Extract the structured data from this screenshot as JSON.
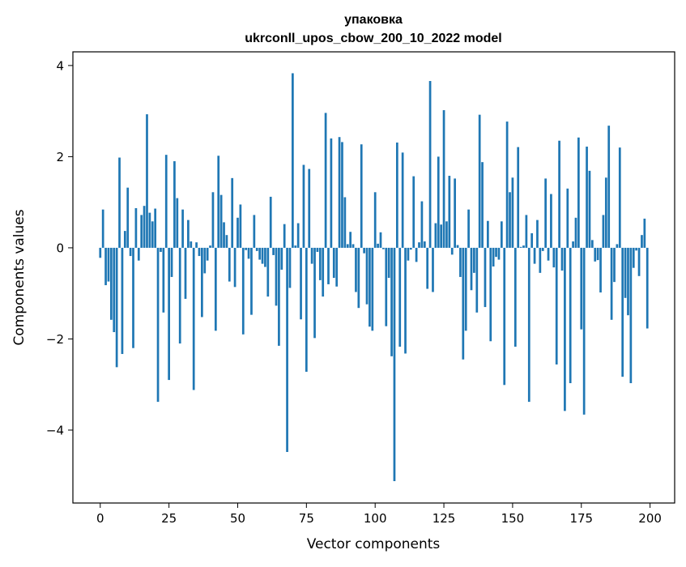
{
  "chart_data": {
    "type": "bar",
    "title": "упаковка",
    "subtitle": "ukrconll_upos_cbow_200_10_2022 model",
    "xlabel": "Vector components",
    "ylabel": "Components values",
    "xlim": [
      -9.95,
      208.95
    ],
    "ylim": [
      -5.6,
      4.3
    ],
    "x_ticks": [
      0,
      25,
      50,
      75,
      100,
      125,
      150,
      175,
      200
    ],
    "y_ticks": [
      -4,
      -2,
      0,
      2,
      4
    ],
    "y_tick_labels": [
      "−4",
      "−2",
      "0",
      "2",
      "4"
    ],
    "grid": false,
    "legend": "none",
    "bar_color": "#1f77b4",
    "series": [
      {
        "values": [
          -0.22,
          0.84,
          -0.82,
          -0.74,
          -1.58,
          -1.85,
          -2.62,
          1.98,
          -2.33,
          0.37,
          1.32,
          -0.18,
          -2.2,
          0.87,
          -0.28,
          0.72,
          0.92,
          2.93,
          0.77,
          0.58,
          0.86,
          -3.38,
          -0.09,
          -1.42,
          2.04,
          -2.9,
          -0.64,
          1.9,
          1.09,
          -2.1,
          0.84,
          -1.12,
          0.61,
          0.14,
          -3.12,
          0.12,
          -0.18,
          -1.52,
          -0.56,
          -0.28,
          0.05,
          1.22,
          -1.82,
          2.02,
          1.16,
          0.56,
          0.28,
          -0.74,
          1.53,
          -0.86,
          0.66,
          0.95,
          -1.9,
          -0.05,
          -0.24,
          -1.47,
          0.72,
          -0.07,
          -0.26,
          -0.35,
          -0.42,
          -1.07,
          1.12,
          -0.16,
          -1.27,
          -2.15,
          -0.48,
          0.52,
          -4.48,
          -0.88,
          3.83,
          0.05,
          0.54,
          -1.57,
          1.82,
          -2.72,
          1.73,
          -0.35,
          -1.98,
          -0.09,
          -0.71,
          -1.07,
          2.96,
          -0.8,
          2.4,
          -0.66,
          -0.85,
          2.43,
          2.32,
          1.11,
          0.08,
          0.35,
          0.08,
          -0.97,
          -1.32,
          2.27,
          -0.12,
          -1.24,
          -1.73,
          -1.82,
          1.22,
          0.09,
          0.34,
          -0.03,
          -1.72,
          -0.66,
          -2.38,
          -5.12,
          2.31,
          -2.17,
          2.09,
          -2.32,
          -0.28,
          -0.04,
          1.57,
          -0.31,
          0.12,
          1.02,
          0.14,
          -0.9,
          3.66,
          -0.97,
          0.54,
          2.0,
          0.51,
          3.02,
          0.58,
          1.58,
          -0.15,
          1.52,
          0.06,
          -0.64,
          -2.45,
          -1.82,
          0.84,
          -0.93,
          -0.55,
          -1.42,
          2.92,
          1.88,
          -1.3,
          0.59,
          -2.05,
          -0.41,
          -0.2,
          -0.26,
          0.58,
          -3.01,
          2.77,
          1.22,
          1.54,
          -2.17,
          2.21,
          0.02,
          0.05,
          0.72,
          -3.38,
          0.32,
          -0.35,
          0.61,
          -0.55,
          -0.07,
          1.52,
          -0.28,
          1.18,
          -0.43,
          -2.56,
          2.35,
          -0.5,
          -3.58,
          1.3,
          -2.97,
          0.14,
          0.66,
          2.42,
          -1.79,
          -3.66,
          2.22,
          1.69,
          0.17,
          -0.3,
          -0.27,
          -0.98,
          0.72,
          1.54,
          2.68,
          -1.58,
          -0.75,
          0.08,
          2.2,
          -2.83,
          -1.1,
          -1.48,
          -2.97,
          -0.44,
          -0.06,
          -0.62,
          0.28,
          0.64,
          -1.77
        ]
      }
    ]
  },
  "colors": {
    "bar": "#1f77b4",
    "axes": "#000000",
    "background": "#ffffff"
  }
}
